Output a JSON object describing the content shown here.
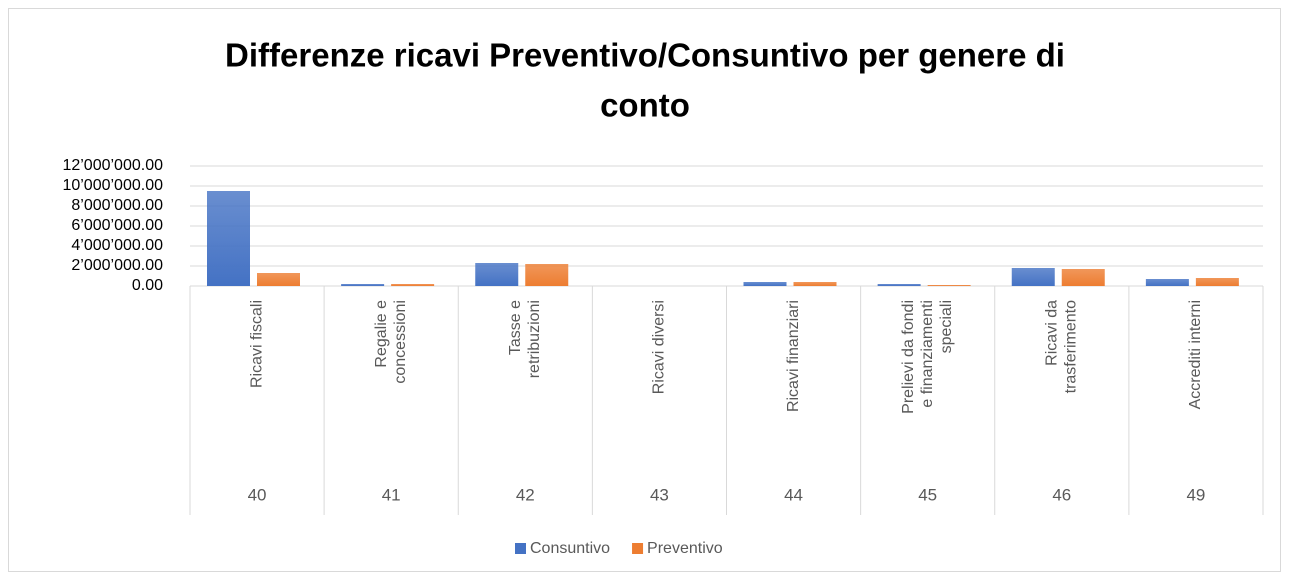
{
  "chart_data": {
    "type": "bar",
    "title": [
      "Differenze ricavi Preventivo/Consuntivo per genere di",
      "conto"
    ],
    "categories": [
      [
        "Ricavi fiscali"
      ],
      [
        "Regalie e",
        "concessioni"
      ],
      [
        "Tasse e",
        "retribuzioni"
      ],
      [
        "Ricavi diversi"
      ],
      [
        "Ricavi finanziari"
      ],
      [
        "Prelievi da fondi",
        "e finanziamenti",
        "speciali"
      ],
      [
        "Ricavi da",
        "trasferimento"
      ],
      [
        "Accrediti interni"
      ]
    ],
    "codes": [
      "40",
      "41",
      "42",
      "43",
      "44",
      "45",
      "46",
      "49"
    ],
    "series": [
      {
        "name": "Consuntivo",
        "color": "#4472c4",
        "values": [
          9500000,
          200000,
          2300000,
          0,
          400000,
          200000,
          1800000,
          700000
        ]
      },
      {
        "name": "Preventivo",
        "color": "#ed7d31",
        "values": [
          1300000,
          200000,
          2200000,
          0,
          400000,
          100000,
          1700000,
          800000
        ]
      }
    ],
    "ylim": [
      0,
      12000000
    ],
    "yticks": [
      {
        "value": 0,
        "label": "0.00"
      },
      {
        "value": 2000000,
        "label": "2’000’000.00"
      },
      {
        "value": 4000000,
        "label": "4’000’000.00"
      },
      {
        "value": 6000000,
        "label": "6’000’000.00"
      },
      {
        "value": 8000000,
        "label": "8’000’000.00"
      },
      {
        "value": 10000000,
        "label": "10’000’000.00"
      },
      {
        "value": 12000000,
        "label": "12’000’000.00"
      }
    ],
    "grid": true,
    "legend": "bottom"
  }
}
